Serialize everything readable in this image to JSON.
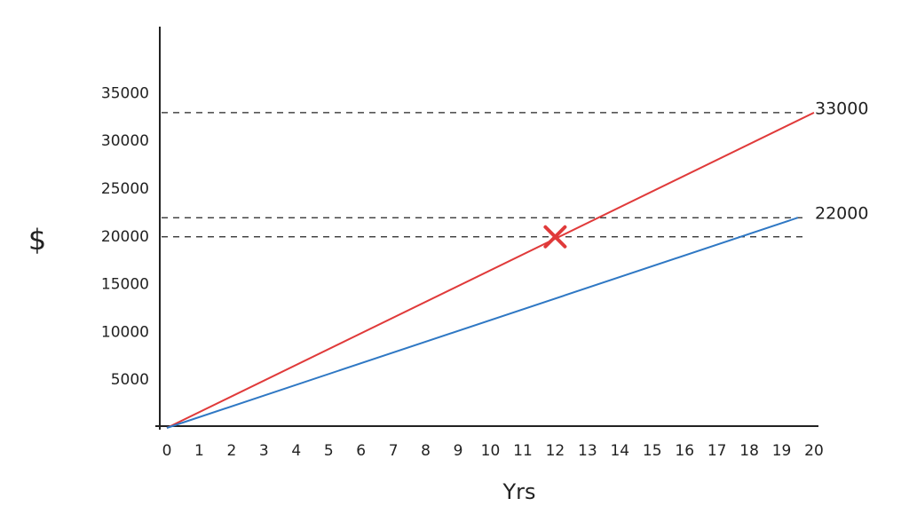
{
  "chart_data": {
    "type": "line",
    "x_label": "Yrs",
    "y_label": "$",
    "xlim": [
      0,
      20
    ],
    "xticks": [
      0,
      1,
      2,
      3,
      4,
      5,
      6,
      7,
      8,
      9,
      10,
      11,
      12,
      13,
      14,
      15,
      16,
      17,
      18,
      19,
      20
    ],
    "ylim": [
      0,
      42000
    ],
    "yticks": [
      5000,
      10000,
      15000,
      20000,
      25000,
      30000,
      35000
    ],
    "grid": false,
    "series": [
      {
        "color": "#e03a3a",
        "x": [
          0,
          20
        ],
        "values": [
          0,
          33000
        ]
      },
      {
        "color": "#2f78c4",
        "x": [
          0,
          19.5
        ],
        "values": [
          0,
          22000
        ]
      }
    ],
    "hlines": [
      33000,
      22000,
      20000
    ],
    "annotations": [
      {
        "text": "33000",
        "y": 33000
      },
      {
        "text": "22000",
        "y": 22000
      }
    ],
    "markers": [
      {
        "x": 12,
        "y": 20000,
        "color": "#e03a3a"
      }
    ]
  }
}
